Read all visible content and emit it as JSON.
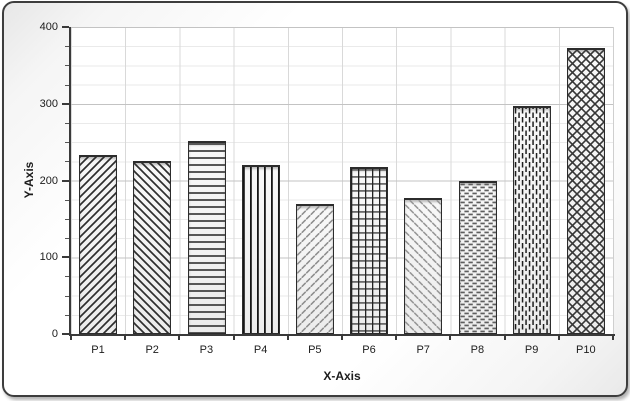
{
  "chart_data": {
    "type": "bar",
    "title": "",
    "xlabel": "X-Axis",
    "ylabel": "Y-Axis",
    "categories": [
      "P1",
      "P2",
      "P3",
      "P4",
      "P5",
      "P6",
      "P7",
      "P8",
      "P9",
      "P10"
    ],
    "values": [
      233,
      226,
      252,
      220,
      170,
      218,
      177,
      199,
      297,
      372
    ],
    "ylim": [
      0,
      400
    ],
    "y_major_ticks": [
      0,
      100,
      200,
      300,
      400
    ],
    "y_minor_step": 25,
    "grid": "horizontal major + minor lines, vertical category separator lines",
    "legend_position": "none",
    "bar_patterns": [
      "diagonal-up",
      "diagonal-down",
      "horizontal-lines",
      "vertical-lines",
      "diagonal-dash-up",
      "grid",
      "diagonal-dash-down",
      "horizontal-dashes",
      "vertical-dashes",
      "crosshatch"
    ],
    "colors": {
      "hatch_dark": "#2e2e2e",
      "hatch_mid": "#5e5e5e",
      "hatch_light": "#8d8d8d",
      "bar_fill": "#f0f0f0",
      "bar_border": "#2c2c2c",
      "axis_line": "#3a3a3a",
      "grid_major": "#c3c3c3",
      "grid_minor": "#eaeaea",
      "frame_border": "#3d3d3d"
    }
  }
}
